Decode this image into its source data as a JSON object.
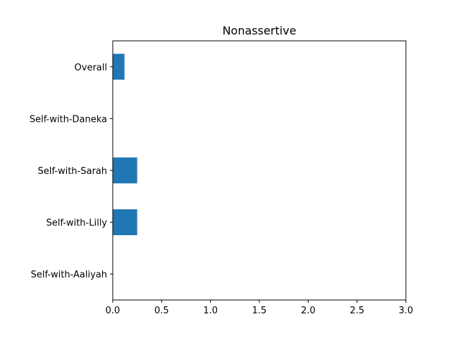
{
  "chart_data": {
    "type": "bar",
    "orientation": "horizontal",
    "title": "Nonassertive",
    "xlabel": "",
    "ylabel": "",
    "categories": [
      "Overall",
      "Self-with-Daneka",
      "Self-with-Sarah",
      "Self-with-Lilly",
      "Self-with-Aaliyah"
    ],
    "values": [
      0.12,
      0,
      0.25,
      0.25,
      0
    ],
    "xlim": [
      0,
      3
    ],
    "xticks": [
      "0.0",
      "0.5",
      "1.0",
      "1.5",
      "2.0",
      "2.5",
      "3.0"
    ],
    "grid": false,
    "bar_color": "#1f77b4"
  }
}
